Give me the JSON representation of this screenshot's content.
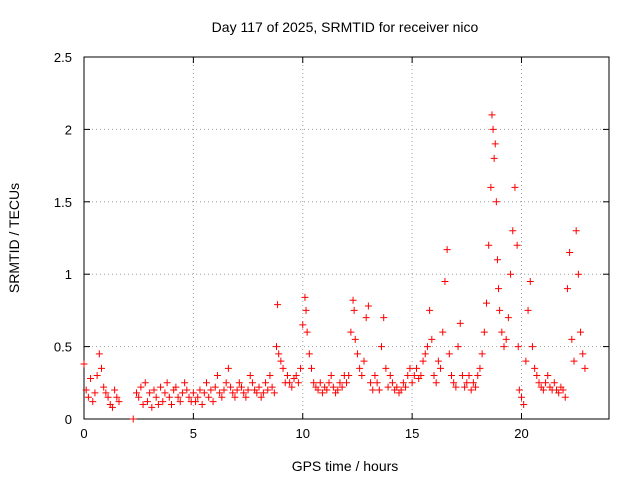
{
  "chart_data": {
    "type": "scatter",
    "title": "Day 117 of 2025, SRMTID for receiver nico",
    "xlabel": "GPS time / hours",
    "ylabel": "SRMTID / TECUs",
    "xlim": [
      0,
      24
    ],
    "ylim": [
      0,
      2.5
    ],
    "xticks": [
      0,
      5,
      10,
      15,
      20
    ],
    "xtick_labels": [
      "0",
      "5",
      "10",
      "15",
      "20"
    ],
    "yticks": [
      0,
      0.5,
      1,
      1.5,
      2,
      2.5
    ],
    "ytick_labels": [
      "0",
      "0.5",
      "1",
      "1.5",
      "2",
      "2.5"
    ],
    "grid": true,
    "marker": "+",
    "color": "#ff0000",
    "series": [
      {
        "name": "SRMTID",
        "x": [
          0.0,
          0.1,
          0.2,
          0.3,
          0.4,
          0.5,
          0.6,
          0.7,
          0.8,
          0.9,
          1.0,
          1.1,
          1.2,
          1.3,
          1.4,
          1.5,
          1.6,
          2.25,
          2.4,
          2.5,
          2.6,
          2.7,
          2.8,
          2.9,
          3.0,
          3.1,
          3.2,
          3.3,
          3.4,
          3.5,
          3.6,
          3.7,
          3.8,
          3.9,
          4.0,
          4.1,
          4.2,
          4.3,
          4.4,
          4.5,
          4.6,
          4.7,
          4.8,
          4.9,
          5.0,
          5.1,
          5.2,
          5.3,
          5.4,
          5.5,
          5.6,
          5.7,
          5.8,
          5.9,
          6.0,
          6.1,
          6.2,
          6.3,
          6.4,
          6.5,
          6.6,
          6.7,
          6.8,
          6.9,
          7.0,
          7.1,
          7.2,
          7.3,
          7.4,
          7.5,
          7.6,
          7.7,
          7.8,
          7.9,
          8.0,
          8.1,
          8.2,
          8.3,
          8.4,
          8.5,
          8.6,
          8.7,
          8.8,
          8.85,
          8.9,
          9.0,
          9.1,
          9.2,
          9.3,
          9.4,
          9.5,
          9.6,
          9.7,
          9.8,
          9.9,
          10.0,
          10.1,
          10.15,
          10.2,
          10.3,
          10.4,
          10.5,
          10.6,
          10.7,
          10.8,
          10.9,
          11.0,
          11.1,
          11.2,
          11.3,
          11.4,
          11.5,
          11.6,
          11.7,
          11.8,
          11.9,
          12.0,
          12.1,
          12.2,
          12.3,
          12.35,
          12.4,
          12.5,
          12.6,
          12.7,
          12.8,
          12.9,
          13.0,
          13.1,
          13.2,
          13.3,
          13.4,
          13.5,
          13.6,
          13.7,
          13.8,
          13.9,
          14.0,
          14.1,
          14.2,
          14.3,
          14.4,
          14.5,
          14.6,
          14.7,
          14.8,
          14.9,
          15.0,
          15.1,
          15.2,
          15.3,
          15.4,
          15.5,
          15.6,
          15.7,
          15.8,
          15.9,
          16.0,
          16.1,
          16.2,
          16.3,
          16.4,
          16.5,
          16.6,
          16.7,
          16.8,
          16.9,
          17.0,
          17.1,
          17.2,
          17.3,
          17.4,
          17.5,
          17.6,
          17.7,
          17.8,
          17.9,
          18.0,
          18.1,
          18.2,
          18.3,
          18.4,
          18.5,
          18.6,
          18.65,
          18.7,
          18.75,
          18.8,
          18.85,
          18.9,
          18.95,
          19.0,
          19.1,
          19.2,
          19.3,
          19.4,
          19.5,
          19.6,
          19.7,
          19.8,
          19.85,
          19.9,
          20.0,
          20.1,
          20.2,
          20.3,
          20.4,
          20.5,
          20.6,
          20.7,
          20.8,
          20.9,
          21.0,
          21.1,
          21.2,
          21.3,
          21.4,
          21.5,
          21.6,
          21.7,
          21.8,
          21.9,
          22.0,
          22.1,
          22.2,
          22.3,
          22.4,
          22.5,
          22.6,
          22.7,
          22.8,
          22.9
        ],
        "y": [
          0.38,
          0.2,
          0.15,
          0.28,
          0.12,
          0.18,
          0.3,
          0.45,
          0.35,
          0.22,
          0.18,
          0.15,
          0.1,
          0.08,
          0.2,
          0.15,
          0.12,
          0.0,
          0.18,
          0.15,
          0.22,
          0.1,
          0.25,
          0.12,
          0.18,
          0.08,
          0.2,
          0.15,
          0.1,
          0.22,
          0.12,
          0.18,
          0.25,
          0.15,
          0.1,
          0.2,
          0.22,
          0.15,
          0.12,
          0.18,
          0.25,
          0.2,
          0.15,
          0.12,
          0.18,
          0.12,
          0.15,
          0.2,
          0.1,
          0.18,
          0.25,
          0.15,
          0.2,
          0.12,
          0.22,
          0.3,
          0.18,
          0.15,
          0.2,
          0.25,
          0.35,
          0.22,
          0.18,
          0.15,
          0.2,
          0.25,
          0.22,
          0.18,
          0.15,
          0.2,
          0.3,
          0.25,
          0.2,
          0.18,
          0.22,
          0.15,
          0.18,
          0.25,
          0.2,
          0.3,
          0.22,
          0.18,
          0.5,
          0.79,
          0.45,
          0.4,
          0.35,
          0.25,
          0.3,
          0.25,
          0.22,
          0.28,
          0.3,
          0.25,
          0.35,
          0.65,
          0.84,
          0.75,
          0.6,
          0.45,
          0.35,
          0.25,
          0.22,
          0.2,
          0.25,
          0.18,
          0.22,
          0.2,
          0.25,
          0.3,
          0.22,
          0.18,
          0.2,
          0.25,
          0.22,
          0.3,
          0.25,
          0.3,
          0.6,
          0.82,
          0.75,
          0.55,
          0.45,
          0.35,
          0.3,
          0.4,
          0.7,
          0.78,
          0.25,
          0.2,
          0.3,
          0.25,
          0.2,
          0.5,
          0.7,
          0.35,
          0.22,
          0.3,
          0.25,
          0.2,
          0.22,
          0.18,
          0.2,
          0.25,
          0.22,
          0.3,
          0.35,
          0.25,
          0.3,
          0.35,
          0.28,
          0.3,
          0.4,
          0.45,
          0.5,
          0.75,
          0.55,
          0.3,
          0.25,
          0.4,
          0.35,
          0.6,
          0.95,
          1.17,
          0.45,
          0.3,
          0.25,
          0.22,
          0.5,
          0.66,
          0.3,
          0.22,
          0.25,
          0.3,
          0.2,
          0.25,
          0.22,
          0.3,
          0.35,
          0.45,
          0.6,
          0.8,
          1.2,
          1.6,
          2.1,
          2.0,
          1.8,
          1.9,
          1.5,
          1.1,
          0.9,
          0.75,
          0.6,
          0.5,
          0.55,
          0.7,
          1.0,
          1.3,
          1.6,
          1.2,
          0.5,
          0.2,
          0.15,
          0.1,
          0.4,
          0.75,
          0.95,
          0.5,
          0.35,
          0.3,
          0.25,
          0.22,
          0.2,
          0.25,
          0.3,
          0.22,
          0.2,
          0.25,
          0.2,
          0.18,
          0.22,
          0.2,
          0.15,
          0.9,
          1.15,
          0.55,
          0.4,
          1.3,
          1.0,
          0.6,
          0.45,
          0.35
        ]
      }
    ]
  }
}
